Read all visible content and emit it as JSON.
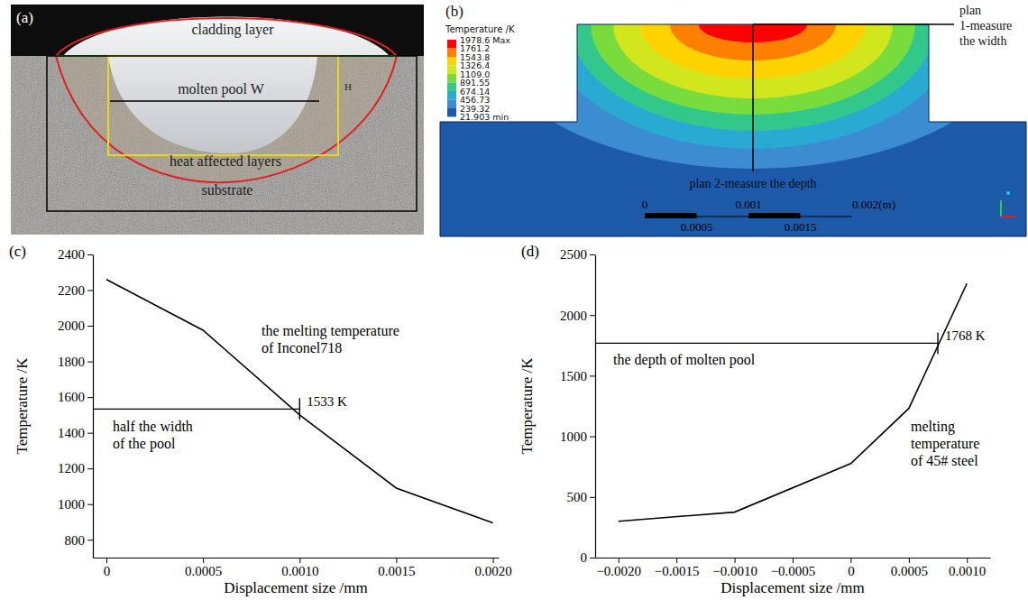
{
  "photo": {
    "letter": "(a)",
    "labels": [
      "cladding layer",
      "molten pool W",
      "heat affected layers",
      "substrate",
      "H"
    ]
  },
  "contour": {
    "letter": "(b)",
    "title": "Temperature /K",
    "levels": [
      {
        "value": 1978.6,
        "label": "1978.6 Max"
      },
      1761.2,
      1543.8,
      1326.4,
      {
        "value": 1109.0,
        "label": "1109.0"
      },
      891.55,
      674.14,
      456.73,
      239.32,
      {
        "value": 21.903,
        "label": "21.903 min"
      }
    ],
    "colors": [
      "#ff0000",
      "#ff7f00",
      "#ffd200",
      "#d2e61e",
      "#78dc3c",
      "#32c88c",
      "#28aad2",
      "#3c8cd2",
      "#1e5aaa"
    ],
    "width_plan": [
      "plan",
      "1-measure",
      "the width"
    ],
    "depth_plan": "plan 2-measure the depth",
    "scale_bar": {
      "ticks": [
        0,
        0.001,
        {
          "value": 0.002,
          "label": "0.002(m)"
        }
      ],
      "minor": [
        0.0005,
        0.0015
      ]
    }
  },
  "chart_data": [
    {
      "type": "line",
      "letter": "(c)",
      "x_label": "Displacement size /mm",
      "y_label": "Temperature /K",
      "x": [
        0,
        0.0005,
        0.001,
        0.0015,
        0.002
      ],
      "values": [
        2260,
        1975,
        1500,
        1090,
        895
      ],
      "color": "#000000",
      "xlim": [
        -7e-05,
        0.00203
      ],
      "ylim": [
        700,
        2400
      ],
      "xticks": [
        0,
        0.0005,
        {
          "value": 0.001,
          "label": "0.0010"
        },
        0.0015,
        {
          "value": 0.002,
          "label": "0.0020"
        }
      ],
      "yticks": [
        800,
        1000,
        1200,
        1400,
        1600,
        1800,
        2000,
        2200,
        2400
      ],
      "reference": {
        "x": 0.001,
        "y": 1533,
        "label": "1533 K"
      },
      "annotations": [
        [
          "the melting temperature",
          "of Inconel718"
        ],
        [
          "half the width",
          "of the pool"
        ]
      ]
    },
    {
      "type": "line",
      "letter": "(d)",
      "x_label": "Displacement size /mm",
      "y_label": "Temperature /K",
      "x": [
        -0.002,
        -0.001,
        0,
        0.0005,
        0.001
      ],
      "values": [
        300,
        375,
        775,
        1230,
        2260
      ],
      "color": "#000000",
      "xlim": [
        -0.0022,
        0.0012
      ],
      "ylim": [
        0,
        2500
      ],
      "xticks": [
        {
          "value": -0.002,
          "label": "−0.0020"
        },
        {
          "value": -0.0015,
          "label": "−0.0015"
        },
        {
          "value": -0.001,
          "label": "−0.0010"
        },
        {
          "value": -0.0005,
          "label": "−0.0005"
        },
        0,
        0.0005,
        {
          "value": 0.001,
          "label": "0.0010"
        }
      ],
      "yticks": [
        0,
        500,
        1000,
        1500,
        2000,
        2500
      ],
      "reference": {
        "x": 0.00075,
        "y": 1768,
        "label": "1768 K"
      },
      "annotations": [
        [
          "the depth of molten pool"
        ],
        [
          "melting",
          "temperature",
          "of 45# steel"
        ]
      ]
    }
  ]
}
